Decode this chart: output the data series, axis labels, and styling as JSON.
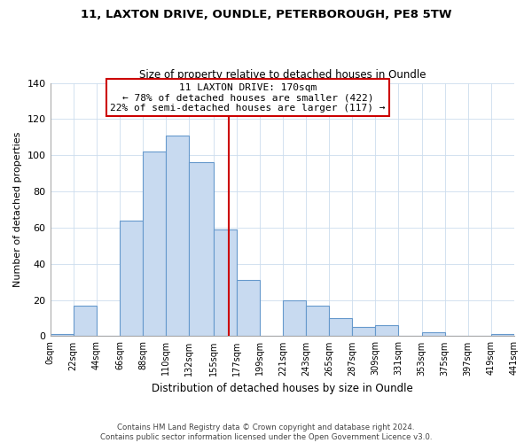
{
  "title": "11, LAXTON DRIVE, OUNDLE, PETERBOROUGH, PE8 5TW",
  "subtitle": "Size of property relative to detached houses in Oundle",
  "xlabel": "Distribution of detached houses by size in Oundle",
  "ylabel": "Number of detached properties",
  "bar_color": "#c8daf0",
  "bar_edge_color": "#6699cc",
  "bin_edges": [
    0,
    22,
    44,
    66,
    88,
    110,
    132,
    155,
    177,
    199,
    221,
    243,
    265,
    287,
    309,
    331,
    353,
    375,
    397,
    419,
    441
  ],
  "bar_heights": [
    1,
    17,
    0,
    64,
    102,
    111,
    96,
    59,
    31,
    0,
    20,
    17,
    10,
    5,
    6,
    0,
    2,
    0,
    0,
    1
  ],
  "tick_labels": [
    "0sqm",
    "22sqm",
    "44sqm",
    "66sqm",
    "88sqm",
    "110sqm",
    "132sqm",
    "155sqm",
    "177sqm",
    "199sqm",
    "221sqm",
    "243sqm",
    "265sqm",
    "287sqm",
    "309sqm",
    "331sqm",
    "353sqm",
    "375sqm",
    "397sqm",
    "419sqm",
    "441sqm"
  ],
  "property_value": 170,
  "property_label": "11 LAXTON DRIVE: 170sqm",
  "annotation_line1": "← 78% of detached houses are smaller (422)",
  "annotation_line2": "22% of semi-detached houses are larger (117) →",
  "vline_color": "#cc0000",
  "box_edge_color": "#cc0000",
  "ylim": [
    0,
    140
  ],
  "yticks": [
    0,
    20,
    40,
    60,
    80,
    100,
    120,
    140
  ],
  "footer1": "Contains HM Land Registry data © Crown copyright and database right 2024.",
  "footer2": "Contains public sector information licensed under the Open Government Licence v3.0."
}
